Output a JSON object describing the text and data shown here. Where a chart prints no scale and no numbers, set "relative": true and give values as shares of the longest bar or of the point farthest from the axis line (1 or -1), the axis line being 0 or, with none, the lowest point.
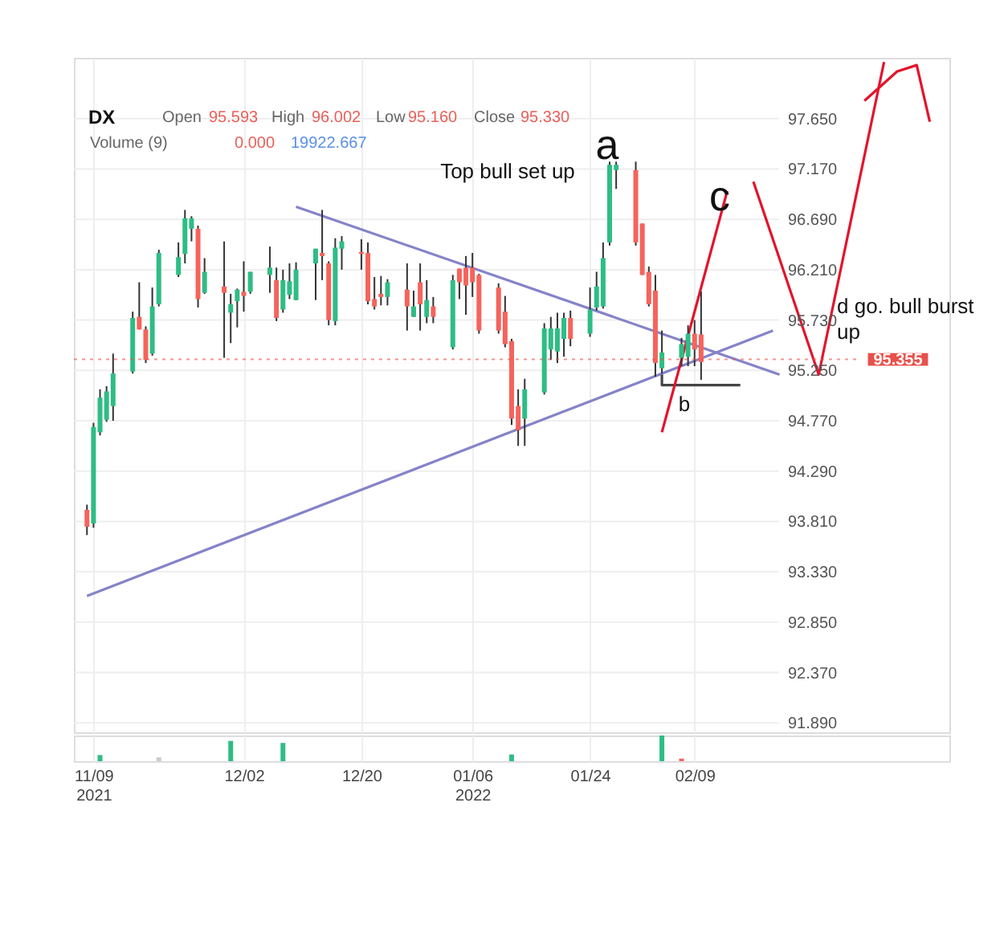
{
  "chart_data": [
    {
      "type": "candlestick",
      "x": [
        "2021-11-08",
        "2021-11-09",
        "2021-11-10",
        "2021-11-11",
        "2021-11-12",
        "2021-11-15",
        "2021-11-16",
        "2021-11-17",
        "2021-11-18",
        "2021-11-19",
        "2021-11-22",
        "2021-11-23",
        "2021-11-24",
        "2021-11-25",
        "2021-11-26",
        "2021-11-29",
        "2021-11-30",
        "2021-12-01",
        "2021-12-02",
        "2021-12-03",
        "2021-12-06",
        "2021-12-07",
        "2021-12-08",
        "2021-12-09",
        "2021-12-10",
        "2021-12-13",
        "2021-12-14",
        "2021-12-15",
        "2021-12-16",
        "2021-12-17",
        "2021-12-20",
        "2021-12-21",
        "2021-12-22",
        "2021-12-23",
        "2021-12-24",
        "2021-12-27",
        "2021-12-28",
        "2021-12-29",
        "2021-12-30",
        "2021-12-31",
        "2022-01-03",
        "2022-01-04",
        "2022-01-05",
        "2022-01-06",
        "2022-01-07",
        "2022-01-10",
        "2022-01-11",
        "2022-01-12",
        "2022-01-13",
        "2022-01-14",
        "2022-01-17",
        "2022-01-18",
        "2022-01-19",
        "2022-01-20",
        "2022-01-21",
        "2022-01-24",
        "2022-01-25",
        "2022-01-26",
        "2022-01-27",
        "2022-01-28",
        "2022-01-31",
        "2022-02-01",
        "2022-02-02",
        "2022-02-03",
        "2022-02-04",
        "2022-02-07",
        "2022-02-08",
        "2022-02-09",
        "2022-02-10"
      ],
      "ohlc": [
        [
          93.92,
          93.97,
          93.68,
          93.76
        ],
        [
          93.79,
          94.75,
          93.75,
          94.71
        ],
        [
          94.66,
          95.07,
          94.63,
          94.99
        ],
        [
          94.78,
          95.1,
          94.76,
          95.05
        ],
        [
          94.91,
          95.41,
          94.77,
          95.22
        ],
        [
          95.24,
          95.81,
          95.22,
          95.75
        ],
        [
          95.76,
          96.09,
          95.64,
          95.64
        ],
        [
          95.64,
          95.67,
          95.32,
          95.35
        ],
        [
          95.41,
          96.04,
          95.39,
          95.86
        ],
        [
          95.88,
          96.4,
          95.86,
          96.37
        ],
        [
          96.16,
          96.47,
          96.14,
          96.33
        ],
        [
          96.36,
          96.78,
          96.27,
          96.7
        ],
        [
          96.6,
          96.72,
          96.48,
          96.7
        ],
        [
          96.6,
          96.63,
          95.85,
          95.93
        ],
        [
          95.99,
          96.32,
          95.98,
          96.19
        ],
        [
          96.05,
          96.48,
          95.37,
          95.99
        ],
        [
          95.8,
          95.98,
          95.51,
          95.88
        ],
        [
          95.91,
          96.03,
          95.66,
          96.02
        ],
        [
          96.0,
          96.29,
          95.81,
          95.96
        ],
        [
          96.0,
          96.19,
          95.98,
          96.19
        ],
        [
          96.16,
          96.43,
          95.99,
          96.23
        ],
        [
          96.11,
          96.23,
          95.72,
          95.75
        ],
        [
          95.83,
          96.21,
          95.8,
          96.11
        ],
        [
          95.97,
          96.27,
          95.93,
          96.1
        ],
        [
          95.92,
          96.28,
          95.92,
          96.21
        ],
        [
          96.27,
          96.41,
          95.92,
          96.41
        ],
        [
          96.37,
          96.78,
          96.11,
          96.34
        ],
        [
          96.27,
          96.29,
          95.68,
          95.73
        ],
        [
          95.72,
          96.51,
          95.68,
          96.42
        ],
        [
          96.41,
          96.53,
          96.21,
          96.48
        ],
        [
          96.38,
          96.5,
          96.21,
          96.36
        ],
        [
          96.37,
          96.47,
          95.88,
          95.91
        ],
        [
          95.93,
          96.14,
          95.83,
          95.86
        ],
        [
          95.98,
          96.15,
          95.87,
          95.95
        ],
        [
          95.95,
          96.12,
          95.87,
          96.09
        ],
        [
          96.02,
          96.27,
          95.63,
          95.86
        ],
        [
          95.76,
          96.01,
          95.76,
          95.86
        ],
        [
          96.09,
          96.27,
          95.63,
          95.88
        ],
        [
          95.76,
          96.11,
          95.7,
          95.92
        ],
        [
          95.86,
          95.95,
          95.7,
          95.76
        ],
        [
          95.47,
          96.16,
          95.45,
          96.11
        ],
        [
          96.22,
          96.22,
          95.93,
          96.09
        ],
        [
          96.23,
          96.34,
          95.78,
          96.06
        ],
        [
          96.23,
          96.37,
          95.95,
          96.09
        ],
        [
          96.16,
          96.17,
          95.6,
          95.63
        ],
        [
          96.04,
          96.08,
          95.6,
          95.63
        ],
        [
          95.81,
          95.96,
          95.47,
          95.5
        ],
        [
          95.53,
          95.55,
          94.73,
          94.79
        ],
        [
          94.91,
          95.07,
          94.53,
          94.68
        ],
        [
          94.79,
          95.17,
          94.53,
          95.07
        ],
        [
          95.04,
          95.7,
          95.02,
          95.65
        ],
        [
          95.45,
          95.76,
          95.35,
          95.65
        ],
        [
          95.43,
          95.8,
          95.32,
          95.65
        ],
        [
          95.55,
          95.8,
          95.38,
          95.75
        ],
        [
          95.75,
          95.82,
          95.48,
          95.55
        ],
        [
          95.6,
          96.04,
          95.57,
          95.83
        ],
        [
          95.85,
          96.19,
          95.82,
          96.05
        ],
        [
          95.86,
          96.47,
          95.84,
          96.32
        ],
        [
          96.47,
          97.24,
          96.44,
          97.21
        ],
        [
          97.16,
          97.24,
          96.98,
          97.21
        ],
        [
          97.16,
          97.24,
          96.44,
          96.47
        ],
        [
          96.65,
          96.65,
          96.16,
          96.16
        ],
        [
          96.19,
          96.24,
          95.86,
          95.88
        ],
        [
          96.01,
          96.16,
          95.19,
          95.32
        ],
        [
          95.27,
          95.63,
          95.22,
          95.42
        ],
        [
          95.37,
          95.56,
          95.29,
          95.5
        ],
        [
          95.38,
          95.68,
          95.29,
          95.6
        ],
        [
          95.6,
          95.73,
          95.29,
          95.45
        ],
        [
          95.593,
          96.002,
          95.16,
          95.33
        ]
      ],
      "colors": [
        "#f6635c",
        "#2ebd85",
        "#2ebd85",
        "#2ebd85",
        "#2ebd85",
        "#2ebd85",
        "#f6635c",
        "#f6635c",
        "#2ebd85",
        "#2ebd85",
        "#2ebd85",
        "#2ebd85",
        "#2ebd85",
        "#f6635c",
        "#2ebd85",
        "#f6635c",
        "#2ebd85",
        "#2ebd85",
        "#f6635c",
        "#2ebd85",
        "#2ebd85",
        "#f6635c",
        "#2ebd85",
        "#2ebd85",
        "#2ebd85",
        "#2ebd85",
        "#f6635c",
        "#f6635c",
        "#2ebd85",
        "#2ebd85",
        "#f6635c",
        "#f6635c",
        "#f6635c",
        "#f6635c",
        "#2ebd85",
        "#f6635c",
        "#2ebd85",
        "#f6635c",
        "#2ebd85",
        "#f6635c",
        "#2ebd85",
        "#f6635c",
        "#f6635c",
        "#f6635c",
        "#f6635c",
        "#f6635c",
        "#f6635c",
        "#f6635c",
        "#f6635c",
        "#2ebd85",
        "#2ebd85",
        "#2ebd85",
        "#2ebd85",
        "#2ebd85",
        "#f6635c",
        "#2ebd85",
        "#2ebd85",
        "#2ebd85",
        "#2ebd85",
        "#2ebd85",
        "#f6635c",
        "#f6635c",
        "#f6635c",
        "#f6635c",
        "#2ebd85",
        "#2ebd85",
        "#2ebd85",
        "#f6635c",
        "#f6635c"
      ],
      "series": [
        {
          "type": "line",
          "color": "#8583c9",
          "x": [
            "2021-12-10",
            "2022-02-22"
          ],
          "values": [
            96.81,
            95.21
          ]
        },
        {
          "type": "line",
          "color": "#8583c9",
          "x": [
            "2021-11-08",
            "2022-02-21"
          ],
          "values": [
            93.1,
            95.63
          ]
        },
        {
          "type": "line",
          "color": "#444444",
          "x": [
            "2022-02-04",
            "2022-02-04",
            "2022-02-16"
          ],
          "values": [
            95.21,
            95.11,
            95.11
          ]
        },
        {
          "type": "line",
          "color": "#e3132b",
          "x": [
            "2022-02-04",
            "2022-02-14"
          ],
          "values": [
            94.66,
            96.96
          ]
        },
        {
          "type": "line",
          "color": "#e3132b",
          "x": [
            "2022-02-18",
            "2022-02-28",
            "2022-03-10"
          ],
          "values": [
            97.05,
            95.21,
            98.19
          ]
        },
        {
          "type": "line",
          "color": "#e3132b",
          "x": [
            "2022-03-07",
            "2022-03-12",
            "2022-03-15",
            "2022-03-17"
          ],
          "values": [
            97.82,
            98.1,
            98.16,
            97.62
          ]
        }
      ],
      "xlim": [
        "2021-11-06",
        "2022-03-20"
      ],
      "xticks": [
        {
          "value": "2021-11-09",
          "label": null
        },
        {
          "value": "2021-12-02",
          "label": null
        },
        {
          "value": "2021-12-20",
          "label": null
        },
        {
          "value": "2022-01-06",
          "label": null
        },
        {
          "value": "2022-01-24",
          "label": null
        },
        {
          "value": "2022-02-09",
          "label": null
        }
      ],
      "ylim": [
        91.8,
        98.23
      ],
      "yticks": [
        {
          "value": 91.89,
          "label": "91.890"
        },
        {
          "value": 92.37,
          "label": "92.370"
        },
        {
          "value": 92.85,
          "label": "92.850"
        },
        {
          "value": 93.33,
          "label": "93.330"
        },
        {
          "value": 93.81,
          "label": "93.810"
        },
        {
          "value": 94.29,
          "label": "94.290"
        },
        {
          "value": 94.77,
          "label": "94.770"
        },
        {
          "value": 95.25,
          "label": "95.250"
        },
        {
          "value": 95.73,
          "label": "95.730"
        },
        {
          "value": 96.21,
          "label": "96.210"
        },
        {
          "value": 96.69,
          "label": "96.690"
        },
        {
          "value": 97.17,
          "label": "97.170"
        },
        {
          "value": 97.65,
          "label": "97.650"
        }
      ],
      "grid": true,
      "tick_labels": "y",
      "ref_lines": [
        {
          "axis": "y",
          "value": 95.355,
          "label": "95.355",
          "color": "#e9504b"
        }
      ],
      "annotations": [
        "DX",
        "Open",
        "95.593",
        "High",
        "96.002",
        "Low",
        "95.160",
        "Close",
        "95.330",
        "Volume (9)",
        "0.000",
        "19922.667",
        "Top bull set up",
        "a",
        "b",
        "c",
        "d go. bull burst\nup"
      ]
    },
    {
      "type": "bar",
      "relative": true,
      "x": [
        "2021-11-10",
        "2021-11-19",
        "2021-11-30",
        "2021-12-08",
        "2022-01-12",
        "2022-02-04",
        "2022-02-07"
      ],
      "values": [
        0.24,
        0.15,
        0.79,
        0.71,
        0.26,
        1,
        0.1
      ],
      "colors": [
        "#2ebd85",
        "#cccccc",
        "#2ebd85",
        "#2ebd85",
        "#2ebd85",
        "#2ebd85",
        "#f6635c"
      ],
      "xlim": [
        "2021-11-06",
        "2022-03-20"
      ],
      "xticks": [
        {
          "value": "2021-11-09",
          "label": "11/09\n2021"
        },
        {
          "value": "2021-12-02",
          "label": "12/02"
        },
        {
          "value": "2021-12-20",
          "label": "12/20"
        },
        {
          "value": "2022-01-06",
          "label": "01/06\n2022"
        },
        {
          "value": "2022-01-24",
          "label": "01/24"
        },
        {
          "value": "2022-02-09",
          "label": "02/09"
        }
      ],
      "grid": true,
      "tick_labels": "x"
    }
  ]
}
